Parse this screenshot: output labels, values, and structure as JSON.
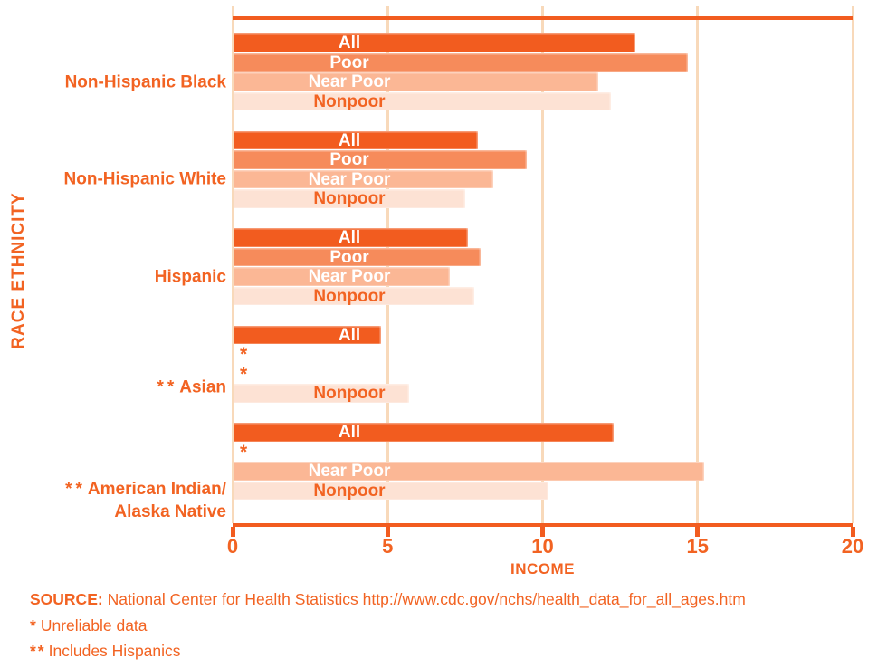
{
  "colors": {
    "text": "#F26322",
    "accent": "#F25C1F",
    "grid": "#F8D9BA",
    "bars": [
      "#F25C1F",
      "#F68B5B",
      "#FBB795",
      "#FDE2D4"
    ],
    "bar_label_colors": [
      "#FFFFFF",
      "#FFFFFF",
      "#FFFFFF",
      "#F26322"
    ],
    "unreliable_marker_color": "#F26322"
  },
  "source": {
    "label": "SOURCE:",
    "text": "National Center for Health Statistics http://www.cdc.gov/nchs/health_data_for_all_ages.htm"
  },
  "footnotes": [
    {
      "symbol": "*",
      "text": "Unreliable data"
    },
    {
      "symbol": "**",
      "text": "Includes Hispanics"
    }
  ],
  "chart_data": {
    "type": "bar",
    "orientation": "horizontal",
    "title": "",
    "xlabel": "INCOME",
    "ylabel": "RACE ETHNICITY",
    "xlim": [
      0,
      20
    ],
    "x_ticks": [
      0,
      5,
      10,
      15,
      20
    ],
    "grid": true,
    "legend": "labels-on-bars",
    "bar_categories": [
      "All",
      "Poor",
      "Near Poor",
      "Nonpoor"
    ],
    "unreliable_symbol": "*",
    "groups": [
      {
        "label_lines": [
          "Non-Hispanic Black"
        ],
        "prefix": "",
        "label_row": 2,
        "bars": [
          {
            "name": "All",
            "value": 13.0
          },
          {
            "name": "Poor",
            "value": 14.7
          },
          {
            "name": "Near Poor",
            "value": 11.8
          },
          {
            "name": "Nonpoor",
            "value": 12.2
          }
        ]
      },
      {
        "label_lines": [
          "Non-Hispanic White"
        ],
        "prefix": "",
        "label_row": 2,
        "bars": [
          {
            "name": "All",
            "value": 7.9
          },
          {
            "name": "Poor",
            "value": 9.5
          },
          {
            "name": "Near Poor",
            "value": 8.4
          },
          {
            "name": "Nonpoor",
            "value": 7.5
          }
        ]
      },
      {
        "label_lines": [
          "Hispanic"
        ],
        "prefix": "",
        "label_row": 2,
        "bars": [
          {
            "name": "All",
            "value": 7.6
          },
          {
            "name": "Poor",
            "value": 8.0
          },
          {
            "name": "Near Poor",
            "value": 7.0
          },
          {
            "name": "Nonpoor",
            "value": 7.8
          }
        ]
      },
      {
        "label_lines": [
          "Asian"
        ],
        "prefix": "**",
        "label_row": 2.7,
        "bars": [
          {
            "name": "All",
            "value": 4.8
          },
          {
            "name": "Poor",
            "value": null,
            "unreliable": true
          },
          {
            "name": "Near Poor",
            "value": null,
            "unreliable": true
          },
          {
            "name": "Nonpoor",
            "value": 5.7
          }
        ]
      },
      {
        "label_lines": [
          "American Indian/",
          "Alaska Native"
        ],
        "prefix": "**",
        "label_row": 3.5,
        "bars": [
          {
            "name": "All",
            "value": 12.3
          },
          {
            "name": "Poor",
            "value": null,
            "unreliable": true
          },
          {
            "name": "Near Poor",
            "value": 15.2
          },
          {
            "name": "Nonpoor",
            "value": 10.2
          }
        ]
      }
    ]
  }
}
